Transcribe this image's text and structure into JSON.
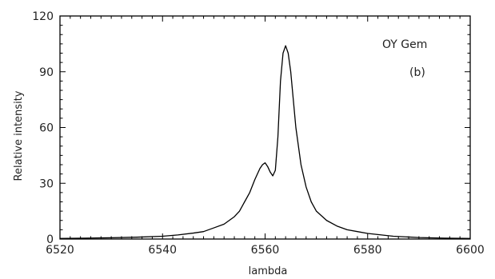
{
  "chart_data": {
    "type": "line",
    "xlabel": "lambda",
    "ylabel": "Relative intensity",
    "xlim": [
      6520,
      6600
    ],
    "ylim": [
      0,
      120
    ],
    "xticks": [
      6520,
      6540,
      6560,
      6580,
      6600
    ],
    "yticks": [
      0,
      30,
      60,
      90,
      120
    ],
    "grid": false,
    "annotations": [
      "OY Gem",
      "(b)"
    ],
    "colors": {
      "line": "#000000",
      "axis": "#000000"
    },
    "series": [
      {
        "x": [
          6520,
          6525,
          6530,
          6535,
          6540,
          6543,
          6546,
          6548,
          6550,
          6552,
          6553,
          6554,
          6555,
          6556,
          6557,
          6558,
          6559,
          6559.5,
          6560,
          6560.5,
          6561,
          6561.5,
          6562,
          6562.5,
          6563,
          6563.5,
          6564,
          6564.5,
          6565,
          6565.5,
          6566,
          6567,
          6568,
          6569,
          6570,
          6572,
          6574,
          6576,
          6578,
          6580,
          6585,
          6590,
          6595,
          6600
        ],
        "y": [
          0.3,
          0.5,
          0.7,
          1,
          1.5,
          2.2,
          3.2,
          4,
          6,
          8,
          10,
          12,
          15,
          20,
          25,
          32,
          38,
          40,
          41,
          39,
          36,
          34,
          37,
          55,
          85,
          100,
          104,
          100,
          90,
          75,
          60,
          40,
          28,
          20,
          15,
          10,
          7,
          5,
          4,
          3,
          1.5,
          0.8,
          0.5,
          0.3
        ]
      }
    ]
  }
}
